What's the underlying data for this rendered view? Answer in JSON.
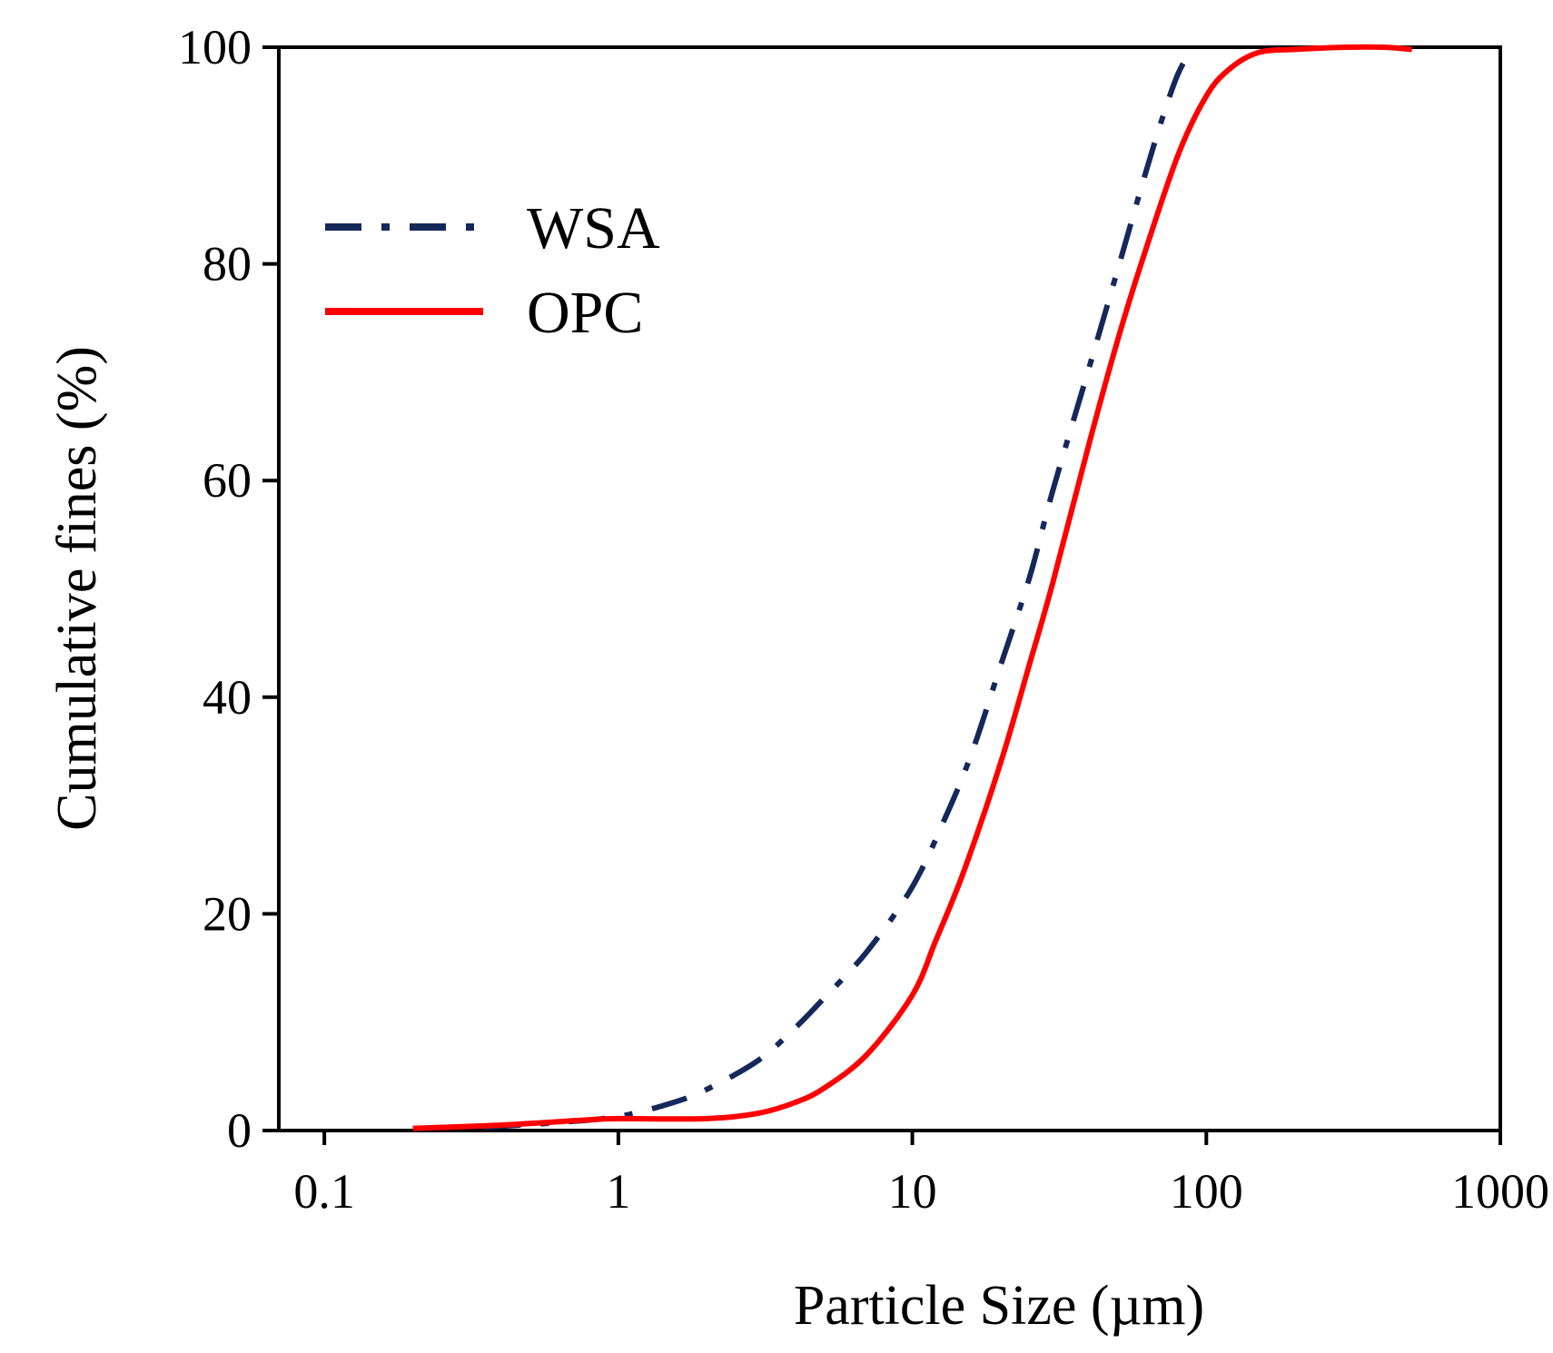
{
  "chart_data": {
    "type": "line",
    "title": "",
    "xlabel": "Particle Size (µm)",
    "ylabel": "Cumulative fines (%)",
    "xscale": "log",
    "xlim": [
      0.07,
      1000
    ],
    "ylim": [
      0,
      100
    ],
    "x_ticks": [
      0.1,
      1,
      10,
      100,
      1000
    ],
    "x_tick_labels": [
      "0.1",
      "1",
      "10",
      "100",
      "1000"
    ],
    "y_ticks": [
      0,
      20,
      40,
      60,
      80,
      100
    ],
    "y_tick_labels": [
      "0",
      "20",
      "40",
      "60",
      "80",
      "100"
    ],
    "grid": false,
    "legend_position": "top-left",
    "series": [
      {
        "name": "WSA",
        "color": "#14285a",
        "style": "dash-dot",
        "x": [
          0.35,
          0.6,
          1,
          1.5,
          2,
          3,
          4,
          5,
          7,
          10,
          13,
          16,
          20,
          25,
          30,
          40,
          50,
          60,
          70,
          80,
          90
        ],
        "y": [
          0.3,
          0.7,
          1.3,
          2.5,
          3.8,
          6.5,
          9.5,
          12.2,
          16.5,
          22.5,
          29,
          35,
          43,
          51,
          59,
          70.5,
          79.5,
          87,
          93,
          97.5,
          100
        ]
      },
      {
        "name": "OPC",
        "color": "#ff0000",
        "style": "solid",
        "x": [
          0.2,
          0.4,
          0.8,
          1,
          2,
          3,
          4,
          5,
          7,
          10,
          12,
          15,
          20,
          25,
          30,
          40,
          50,
          60,
          80,
          100,
          120,
          150,
          200,
          300,
          400,
          500
        ],
        "y": [
          0.2,
          0.5,
          1,
          1.1,
          1.1,
          1.6,
          2.6,
          3.9,
          7,
          12.5,
          17.5,
          24,
          34,
          43,
          50.5,
          63.5,
          73,
          80,
          90,
          95.5,
          98,
          99.5,
          99.8,
          100,
          100,
          99.8
        ]
      }
    ]
  }
}
